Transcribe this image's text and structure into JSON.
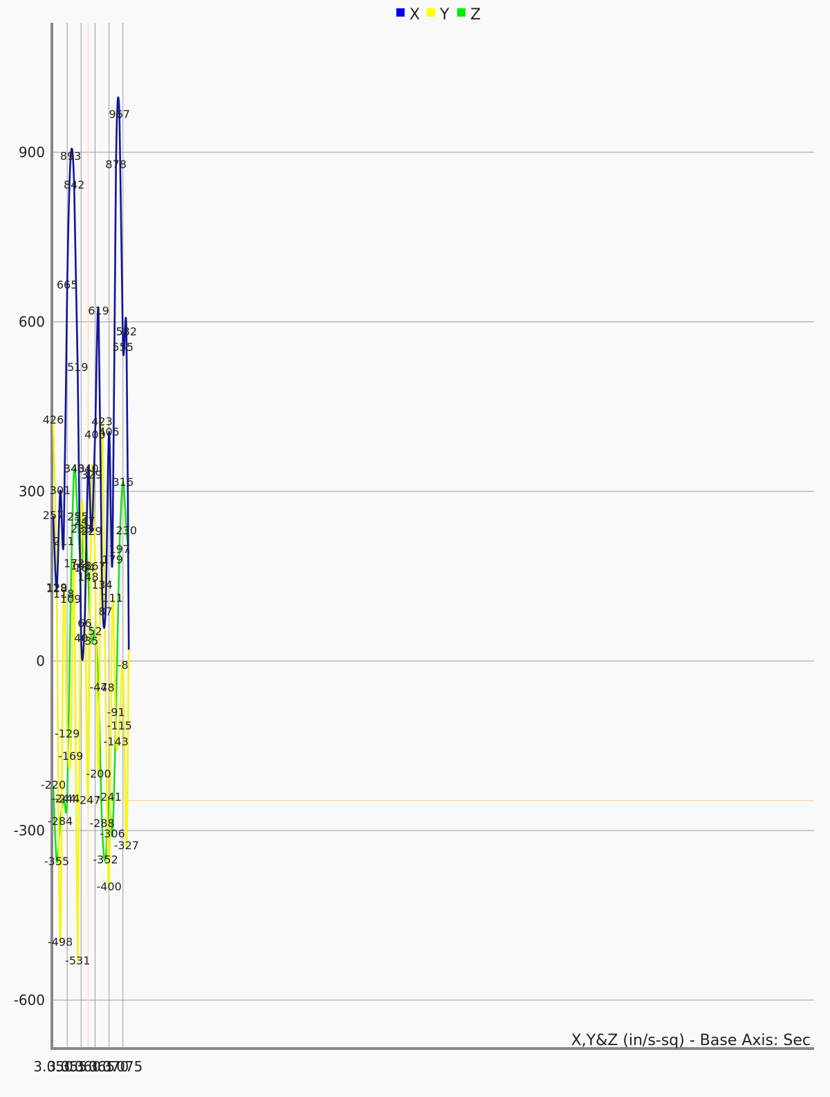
{
  "chart_data": {
    "type": "line",
    "title": "",
    "axis_title": "X,Y&Z (in/s-sq) - Base Axis: Sec",
    "xlim": [
      3.05,
      3.0771
    ],
    "ylim": [
      -680,
      1130
    ],
    "x_ticks": [
      3.05,
      3.055,
      3.06,
      3.065,
      3.07,
      3.075
    ],
    "x_tick_labels": [
      "3.050",
      "3.055",
      "3.060",
      "3.065",
      "3.070",
      "3.075"
    ],
    "y_ticks": [
      -600,
      -300,
      0,
      300,
      600,
      900
    ],
    "y_tick_labels": [
      "-600",
      "-300",
      "0",
      "300",
      "600",
      "900"
    ],
    "grid": true,
    "legend_position": "top-center",
    "crosshair": {
      "x": 3.0625,
      "y": -247,
      "color": "#f3dfa8"
    },
    "series": [
      {
        "name": "X",
        "color": "#10149a",
        "legend_color": "#0000ee",
        "points": [
          [
            3.05,
            257,
            "257"
          ],
          [
            3.05125,
            129,
            "129"
          ],
          [
            3.0525,
            301,
            "301"
          ],
          [
            3.05375,
            211,
            "211"
          ],
          [
            3.055,
            665,
            "665"
          ],
          [
            3.05625,
            893,
            "893"
          ],
          [
            3.0575,
            842,
            "842"
          ],
          [
            3.05875,
            519,
            "519"
          ],
          [
            3.06,
            40,
            "40"
          ],
          [
            3.06125,
            66,
            "66"
          ],
          [
            3.0625,
            340,
            "340"
          ],
          [
            3.06375,
            229,
            "229"
          ],
          [
            3.065,
            400,
            "400"
          ],
          [
            3.06625,
            619,
            "619"
          ],
          [
            3.0675,
            134,
            "134"
          ],
          [
            3.06875,
            87,
            "87"
          ],
          [
            3.07,
            405,
            "405"
          ],
          [
            3.07125,
            179,
            "179"
          ],
          [
            3.0725,
            878,
            "878"
          ],
          [
            3.07375,
            967,
            "967"
          ],
          [
            3.075,
            555,
            "555"
          ],
          [
            3.07625,
            582,
            "582"
          ],
          [
            3.0771,
            20,
            ""
          ]
        ]
      },
      {
        "name": "Y",
        "color": "#f5f51a",
        "legend_color": "#ffff00",
        "points": [
          [
            3.05,
            426,
            "426"
          ],
          [
            3.05125,
            128,
            "128"
          ],
          [
            3.0525,
            -498,
            "-498"
          ],
          [
            3.05375,
            118,
            "118"
          ],
          [
            3.055,
            -129,
            "-129"
          ],
          [
            3.05625,
            -169,
            "-169"
          ],
          [
            3.0575,
            172,
            "172"
          ],
          [
            3.05875,
            -531,
            "-531"
          ],
          [
            3.06,
            233,
            "233"
          ],
          [
            3.06125,
            164,
            "164"
          ],
          [
            3.0625,
            -247,
            "-247"
          ],
          [
            3.06375,
            329,
            "329"
          ],
          [
            3.065,
            167,
            "167"
          ],
          [
            3.06625,
            -200,
            "-200"
          ],
          [
            3.0675,
            423,
            "423"
          ],
          [
            3.06875,
            -48,
            "-48"
          ],
          [
            3.07,
            -400,
            "-400"
          ],
          [
            3.07125,
            111,
            "111"
          ],
          [
            3.0725,
            -143,
            "-143"
          ],
          [
            3.07375,
            -115,
            "-115"
          ],
          [
            3.075,
            -8,
            "-8"
          ],
          [
            3.07625,
            -327,
            "-327"
          ],
          [
            3.0771,
            30,
            ""
          ]
        ]
      },
      {
        "name": "Z",
        "color": "#22dd22",
        "legend_color": "#00ee00",
        "points": [
          [
            3.05,
            -220,
            "-220"
          ],
          [
            3.05125,
            -355,
            "-355"
          ],
          [
            3.0525,
            -284,
            "-284"
          ],
          [
            3.05375,
            -244,
            "-244"
          ],
          [
            3.055,
            -244,
            "-244"
          ],
          [
            3.05625,
            109,
            "109"
          ],
          [
            3.0575,
            340,
            "340"
          ],
          [
            3.05875,
            255,
            "255"
          ],
          [
            3.06,
            168,
            "168"
          ],
          [
            3.06125,
            247,
            "247"
          ],
          [
            3.0625,
            148,
            "148"
          ],
          [
            3.06375,
            35,
            "35"
          ],
          [
            3.065,
            52,
            "52"
          ],
          [
            3.06625,
            -47,
            "-47"
          ],
          [
            3.0675,
            -288,
            "-288"
          ],
          [
            3.06875,
            -352,
            "-352"
          ],
          [
            3.07,
            -241,
            "-241"
          ],
          [
            3.07125,
            -306,
            "-306"
          ],
          [
            3.0725,
            -91,
            "-91"
          ],
          [
            3.07375,
            197,
            "197"
          ],
          [
            3.075,
            316,
            "316"
          ],
          [
            3.07625,
            230,
            "230"
          ],
          [
            3.0771,
            190,
            ""
          ]
        ]
      }
    ]
  }
}
